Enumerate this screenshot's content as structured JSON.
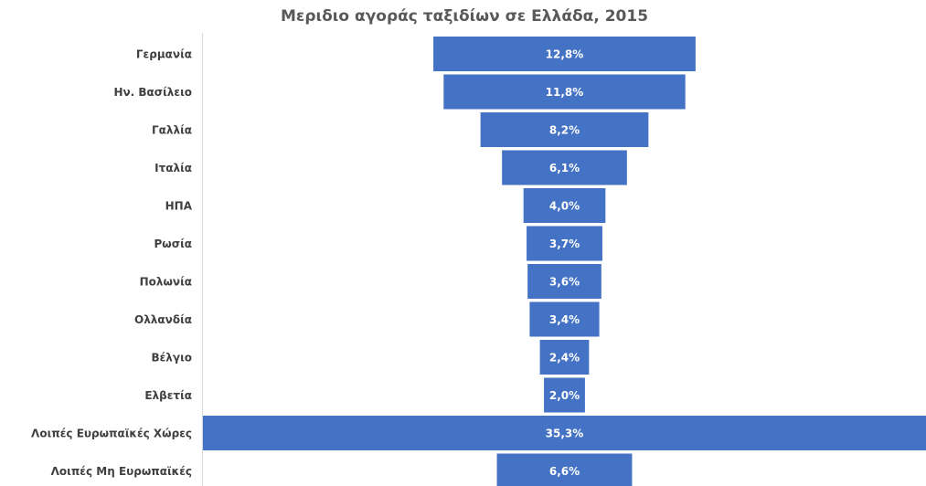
{
  "chart_data": {
    "type": "funnel",
    "title": "Μεριδιο αγοράς ταξιδίων σε Ελλάδα, 2015",
    "categories": [
      "Γερμανία",
      "Ην. Βασίλειο",
      "Γαλλία",
      "Ιταλία",
      "ΗΠΑ",
      "Ρωσία",
      "Πολωνία",
      "Ολλανδία",
      "Βέλγιο",
      "Ελβετία",
      "Λοιπές Ευρωπαϊκές Χώρες",
      "Λοιπές Μη Ευρωπαϊκές"
    ],
    "values": [
      12.8,
      11.8,
      8.2,
      6.1,
      4.0,
      3.7,
      3.6,
      3.4,
      2.4,
      2.0,
      35.3,
      6.6
    ],
    "value_labels": [
      "12,8%",
      "11,8%",
      "8,2%",
      "6,1%",
      "4,0%",
      "3,7%",
      "3,6%",
      "3,4%",
      "2,4%",
      "2,0%",
      "35,3%",
      "6,6%"
    ],
    "color": "#4472c4"
  }
}
